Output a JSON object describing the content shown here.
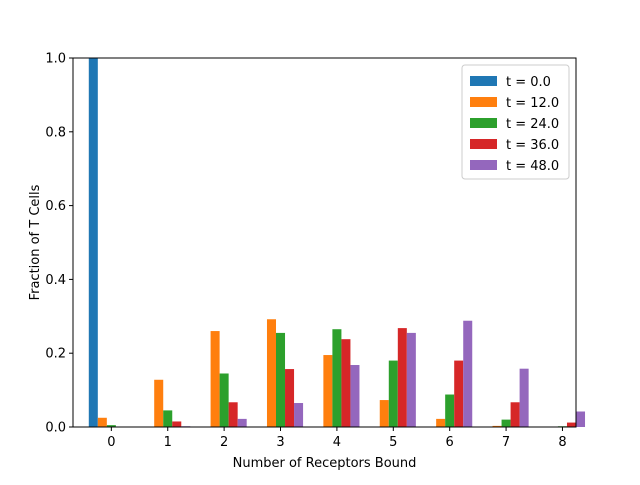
{
  "chart_data": {
    "type": "bar",
    "title": "",
    "xlabel": "Number of Receptors Bound",
    "ylabel": "Fraction of T Cells",
    "categories": [
      "0",
      "1",
      "2",
      "3",
      "4",
      "5",
      "6",
      "7",
      "8"
    ],
    "ylim": [
      0,
      1.0
    ],
    "yticks": [
      "0.0",
      "0.2",
      "0.4",
      "0.6",
      "0.8",
      "1.0"
    ],
    "grid": false,
    "legend_position": "top-right",
    "series": [
      {
        "name": "t = 0.0",
        "color": "#1f77b4",
        "values": [
          1.0,
          0,
          0,
          0,
          0,
          0,
          0,
          0,
          0
        ]
      },
      {
        "name": "t = 12.0",
        "color": "#ff7f0e",
        "values": [
          0.025,
          0.128,
          0.26,
          0.292,
          0.195,
          0.073,
          0.022,
          0.003,
          0.0
        ]
      },
      {
        "name": "t = 24.0",
        "color": "#2ca02c",
        "values": [
          0.005,
          0.045,
          0.145,
          0.255,
          0.265,
          0.18,
          0.088,
          0.02,
          0.002
        ]
      },
      {
        "name": "t = 36.0",
        "color": "#d62728",
        "values": [
          0.0,
          0.015,
          0.067,
          0.157,
          0.238,
          0.268,
          0.18,
          0.067,
          0.012
        ]
      },
      {
        "name": "t = 48.0",
        "color": "#9467bd",
        "values": [
          0.0,
          0.002,
          0.022,
          0.065,
          0.168,
          0.255,
          0.288,
          0.158,
          0.042
        ]
      }
    ]
  }
}
